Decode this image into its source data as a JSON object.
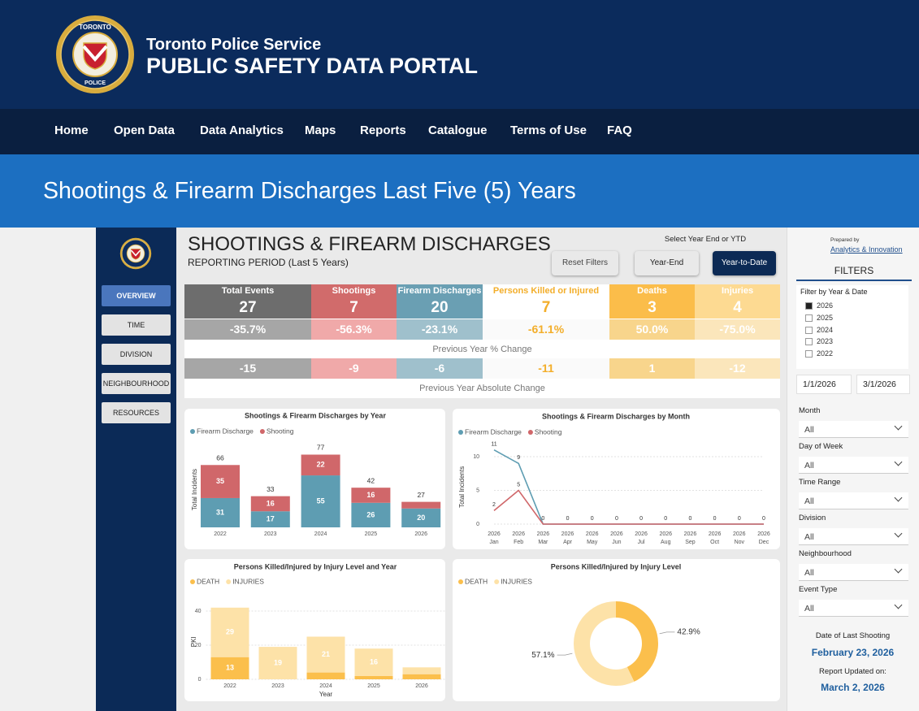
{
  "header": {
    "logo_top": "TORONTO",
    "logo_bottom": "POLICE",
    "org": "Toronto Police Service",
    "portal": "PUBLIC SAFETY DATA PORTAL"
  },
  "nav": [
    "Home",
    "Open Data",
    "Data Analytics",
    "Maps",
    "Reports",
    "Catalogue",
    "Terms of Use",
    "FAQ"
  ],
  "banner": {
    "title": "Shootings & Firearm Discharges Last Five (5) Years"
  },
  "dashboard": {
    "title": "SHOOTINGS & FIREARM DISCHARGES",
    "subtitle": "REPORTING PERIOD (Last 5 Years)",
    "select_label": "Select Year End or YTD",
    "buttons": [
      "Reset Filters",
      "Year-End",
      "Year-to-Date"
    ],
    "side_nav": [
      "OVERVIEW",
      "TIME",
      "DIVISION",
      "NEIGHBOURHOOD",
      "RESOURCES"
    ],
    "kpis": [
      {
        "label": "Total Events",
        "value": 27,
        "pct_change": "-35.7%",
        "abs_change": -15
      },
      {
        "label": "Shootings",
        "value": 7,
        "pct_change": "-56.3%",
        "abs_change": -9
      },
      {
        "label": "Firearm Discharges",
        "value": 20,
        "pct_change": "-23.1%",
        "abs_change": -6
      },
      {
        "label": "Persons Killed or Injured",
        "value": 7,
        "pct_change": "-61.1%",
        "abs_change": -11
      },
      {
        "label": "Deaths",
        "value": 3,
        "pct_change": "50.0%",
        "abs_change": 1
      },
      {
        "label": "Injuries",
        "value": 4,
        "pct_change": "-75.0%",
        "abs_change": -12
      }
    ],
    "pct_row_label": "Previous Year % Change",
    "abs_row_label": "Previous Year Absolute Change"
  },
  "filters": {
    "prepared_by": "Prepared by",
    "prepared_by_org": "Analytics & Innovation",
    "title": "FILTERS",
    "year_filter_label": "Filter by Year & Date",
    "years": [
      {
        "label": "2026",
        "checked": true
      },
      {
        "label": "2025",
        "checked": false
      },
      {
        "label": "2024",
        "checked": false
      },
      {
        "label": "2023",
        "checked": false
      },
      {
        "label": "2022",
        "checked": false
      }
    ],
    "dates": [
      "1/1/2026",
      "3/1/2026"
    ],
    "dropdowns": [
      {
        "label": "Month",
        "value": "All"
      },
      {
        "label": "Day of Week",
        "value": "All"
      },
      {
        "label": "Time Range",
        "value": "All"
      },
      {
        "label": "Division",
        "value": "All"
      },
      {
        "label": "Neighbourhood",
        "value": "All"
      },
      {
        "label": "Event Type",
        "value": "All"
      }
    ],
    "last_shooting_label": "Date of Last Shooting",
    "last_shooting_date": "February 23, 2026",
    "updated_label": "Report Updated on:",
    "updated_date": "March 2, 2026"
  },
  "chart_data": [
    {
      "type": "stacked_bar",
      "title": "Shootings & Firearm Discharges by Year",
      "y_label": "Total Incidents",
      "categories": [
        "2022",
        "2023",
        "2024",
        "2025",
        "2026"
      ],
      "series": [
        {
          "name": "Firearm Discharge",
          "color": "#5e9db2",
          "values": [
            31,
            17,
            55,
            26,
            20
          ]
        },
        {
          "name": "Shooting",
          "color": "#d0676a",
          "values": [
            35,
            16,
            22,
            16,
            7
          ]
        }
      ],
      "totals": [
        66,
        33,
        77,
        42,
        27
      ],
      "ylim": [
        0,
        80
      ]
    },
    {
      "type": "line",
      "title": "Shootings & Firearm Discharges by Month",
      "y_label": "Total Incidents",
      "categories": [
        {
          "year": "2026",
          "month": "Jan"
        },
        {
          "year": "2026",
          "month": "Feb"
        },
        {
          "year": "2026",
          "month": "Mar"
        },
        {
          "year": "2026",
          "month": "Apr"
        },
        {
          "year": "2026",
          "month": "May"
        },
        {
          "year": "2026",
          "month": "Jun"
        },
        {
          "year": "2026",
          "month": "Jul"
        },
        {
          "year": "2026",
          "month": "Aug"
        },
        {
          "year": "2026",
          "month": "Sep"
        },
        {
          "year": "2026",
          "month": "Oct"
        },
        {
          "year": "2026",
          "month": "Nov"
        },
        {
          "year": "2026",
          "month": "Dec"
        }
      ],
      "series": [
        {
          "name": "Firearm Discharge",
          "color": "#5e9db2",
          "values": [
            11,
            9,
            0,
            0,
            0,
            0,
            0,
            0,
            0,
            0,
            0,
            0
          ]
        },
        {
          "name": "Shooting",
          "color": "#d0676a",
          "values": [
            2,
            5,
            0,
            0,
            0,
            0,
            0,
            0,
            0,
            0,
            0,
            0
          ]
        }
      ],
      "ylim": [
        0,
        11
      ],
      "yticks": [
        0,
        5,
        10
      ],
      "grid": true
    },
    {
      "type": "stacked_bar",
      "title": "Persons Killed/Injured by Injury Level and Year",
      "x_label": "Year",
      "y_label": "PKI",
      "categories": [
        "2022",
        "2023",
        "2024",
        "2025",
        "2026"
      ],
      "series": [
        {
          "name": "DEATH",
          "color": "#fbbf4c",
          "values": [
            13,
            0,
            4,
            2,
            3
          ]
        },
        {
          "name": "INJURIES",
          "color": "#fde2a8",
          "values": [
            29,
            19,
            21,
            16,
            4
          ]
        }
      ],
      "ylim": [
        0,
        44
      ],
      "yticks": [
        0,
        20,
        40
      ],
      "grid": true
    },
    {
      "type": "donut",
      "title": "Persons Killed/Injured by Injury Level",
      "categories": [
        "DEATH",
        "INJURIES"
      ],
      "values": [
        42.9,
        57.1
      ],
      "value_labels": [
        "42.9%",
        "57.1%"
      ],
      "colors": [
        "#fbbf4c",
        "#fde2a8"
      ]
    }
  ]
}
